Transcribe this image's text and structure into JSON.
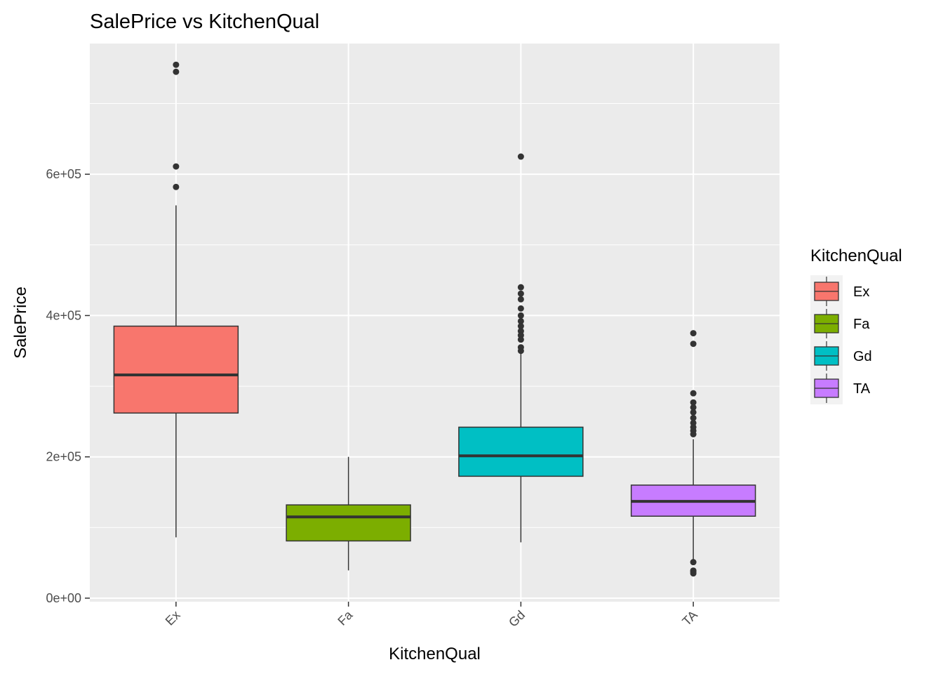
{
  "chart_data": {
    "type": "boxplot",
    "title": "SalePrice vs KitchenQual",
    "xlabel": "KitchenQual",
    "ylabel": "SalePrice",
    "ylim": [
      -5000,
      785000
    ],
    "y_ticks": [
      0,
      200000,
      400000,
      600000
    ],
    "y_tick_labels": [
      "0e+00",
      "2e+05",
      "4e+05",
      "6e+05"
    ],
    "y_minor_ticks": [
      100000,
      300000,
      500000,
      700000
    ],
    "categories": [
      "Ex",
      "Fa",
      "Gd",
      "TA"
    ],
    "colors": [
      "#F8766D",
      "#7CAE00",
      "#00BFC4",
      "#C77CFF"
    ],
    "legend": {
      "title": "KitchenQual",
      "labels": [
        "Ex",
        "Fa",
        "Gd",
        "TA"
      ]
    },
    "boxes": [
      {
        "category": "Ex",
        "whisker_low": 86000,
        "q1": 262000,
        "median": 316000,
        "q3": 385000,
        "whisker_high": 556000,
        "outliers": [
          755000,
          745000,
          611000,
          582000
        ]
      },
      {
        "category": "Fa",
        "whisker_low": 39300,
        "q1": 81000,
        "median": 115000,
        "q3": 132000,
        "whisker_high": 200000,
        "outliers": []
      },
      {
        "category": "Gd",
        "whisker_low": 79000,
        "q1": 172500,
        "median": 201400,
        "q3": 242000,
        "whisker_high": 347000,
        "outliers": [
          625000,
          440000,
          431000,
          423000,
          410000,
          400000,
          392000,
          385000,
          378000,
          372000,
          366000,
          355000,
          350000
        ]
      },
      {
        "category": "TA",
        "whisker_low": 52500,
        "q1": 116000,
        "median": 137000,
        "q3": 160000,
        "whisker_high": 225000,
        "outliers": [
          375000,
          360000,
          290000,
          277000,
          270000,
          263000,
          255000,
          248000,
          242000,
          237000,
          232000,
          51000,
          39000,
          37000,
          35000
        ]
      }
    ]
  }
}
